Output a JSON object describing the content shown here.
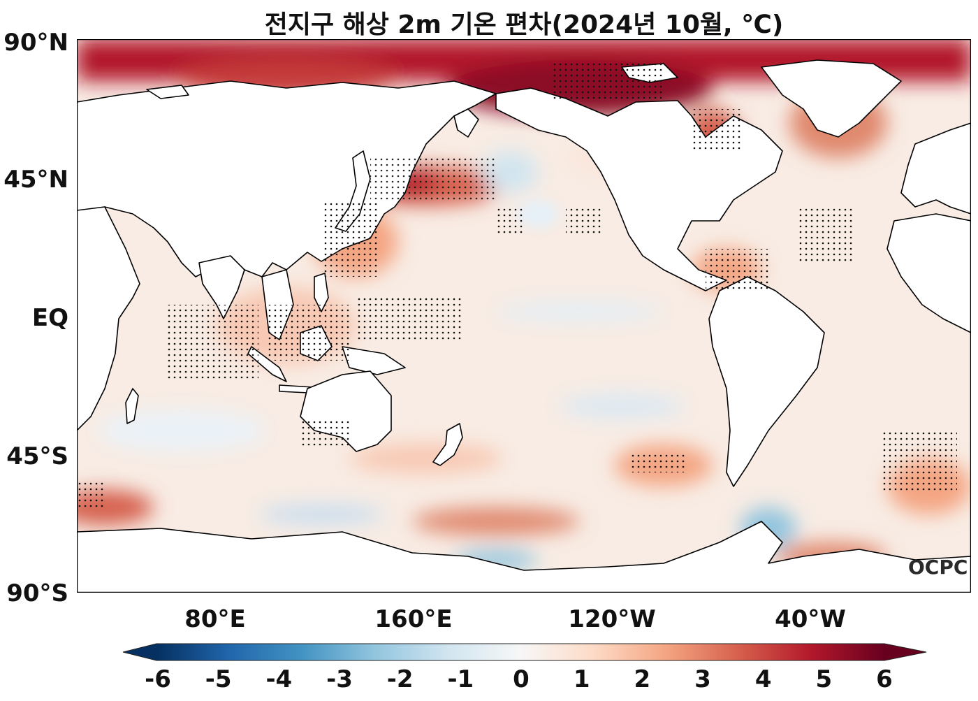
{
  "title": "전지구 해상 2m 기온 편차(2024년 10월, ℃)",
  "axes": {
    "lat_ticks": [
      "90°N",
      "45°N",
      "EQ",
      "45°S",
      "90°S"
    ],
    "lon_ticks": [
      "80°E",
      "160°E",
      "120°W",
      "40°W"
    ]
  },
  "colorbar": {
    "ticks": [
      "-6",
      "-5",
      "-4",
      "-3",
      "-2",
      "-1",
      "0",
      "1",
      "2",
      "3",
      "4",
      "5",
      "6"
    ],
    "colors": [
      "#053061",
      "#2166ac",
      "#4393c3",
      "#92c5de",
      "#d1e5f0",
      "#f7f7f7",
      "#fddbc7",
      "#f4a582",
      "#d6604d",
      "#b2182b",
      "#67001f"
    ]
  },
  "watermark": "OCPC",
  "colors": {
    "land": "#ffffff",
    "coast": "#000000",
    "neutral": "#f7f3ef"
  }
}
